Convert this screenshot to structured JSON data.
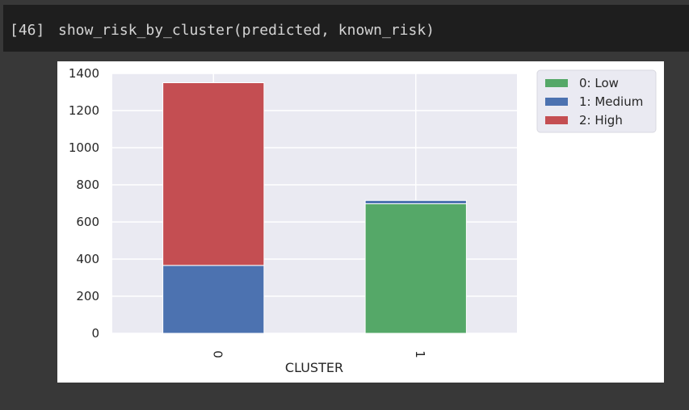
{
  "cell": {
    "execution_count": "[46]",
    "code": "show_risk_by_cluster(predicted, known_risk)"
  },
  "chart_data": {
    "type": "bar",
    "stacked": true,
    "xlabel": "CLUSTER",
    "ylabel": "",
    "categories": [
      "0",
      "1"
    ],
    "ylim": [
      0,
      1400
    ],
    "yticks": [
      0,
      200,
      400,
      600,
      800,
      1000,
      1200,
      1400
    ],
    "ytick_labels": [
      "0",
      "200",
      "400",
      "600",
      "800",
      "1000",
      "1200",
      "1400"
    ],
    "grid": true,
    "legend_position": "outside-top-right",
    "series": [
      {
        "name": "0: Low",
        "color": "#55a868",
        "values": [
          0,
          698
        ]
      },
      {
        "name": "1: Medium",
        "color": "#4c72b0",
        "values": [
          366,
          18
        ]
      },
      {
        "name": "2: High",
        "color": "#c44e52",
        "values": [
          984,
          0
        ]
      }
    ]
  }
}
